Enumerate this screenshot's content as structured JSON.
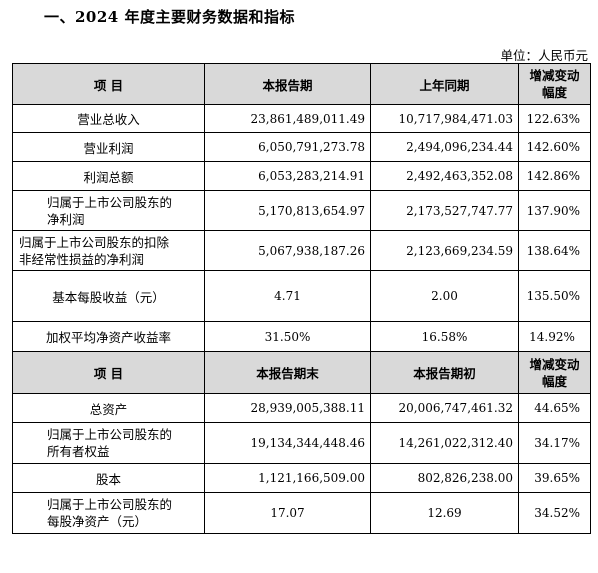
{
  "heading": "一、2024 年度主要财务数据和指标",
  "unit": "单位：人民币元",
  "table1": {
    "headers": [
      "项  目",
      "本报告期",
      "上年同期",
      "增减变动幅度"
    ],
    "rows": [
      {
        "label": "营业总收入",
        "current": "23,861,489,011.49",
        "prior": "10,717,984,471.03",
        "change": "122.63%"
      },
      {
        "label": "营业利润",
        "current": "6,050,791,273.78",
        "prior": "2,494,096,234.44",
        "change": "142.60%"
      },
      {
        "label": "利润总额",
        "current": "6,053,283,214.91",
        "prior": "2,492,463,352.08",
        "change": "142.86%"
      },
      {
        "label_line1": "归属于上市公司股东的",
        "label_line2": "净利润",
        "current": "5,170,813,654.97",
        "prior": "2,173,527,747.77",
        "change": "137.90%"
      },
      {
        "label_line1": "归属于上市公司股东的扣除",
        "label_line2": "非经常性损益的净利润",
        "current": "5,067,938,187.26",
        "prior": "2,123,669,234.59",
        "change": "138.64%"
      },
      {
        "label": "基本每股收益（元）",
        "current": "4.71",
        "prior": "2.00",
        "change": "135.50%"
      },
      {
        "label": "加权平均净资产收益率",
        "current": "31.50%",
        "prior": "16.58%",
        "change": "14.92%"
      }
    ]
  },
  "table2": {
    "headers": [
      "项  目",
      "本报告期末",
      "本报告期初",
      "增减变动幅度"
    ],
    "rows": [
      {
        "label": "总资产",
        "current": "28,939,005,388.11",
        "prior": "20,006,747,461.32",
        "change": "44.65%"
      },
      {
        "label_line1": "归属于上市公司股东的",
        "label_line2": "所有者权益",
        "current": "19,134,344,448.46",
        "prior": "14,261,022,312.40",
        "change": "34.17%"
      },
      {
        "label": "股本",
        "current": "1,121,166,509.00",
        "prior": "802,826,238.00",
        "change": "39.65%"
      },
      {
        "label_line1": "归属于上市公司股东的",
        "label_line2": "每股净资产（元）",
        "current": "17.07",
        "prior": "12.69",
        "change": "34.52%"
      }
    ]
  }
}
